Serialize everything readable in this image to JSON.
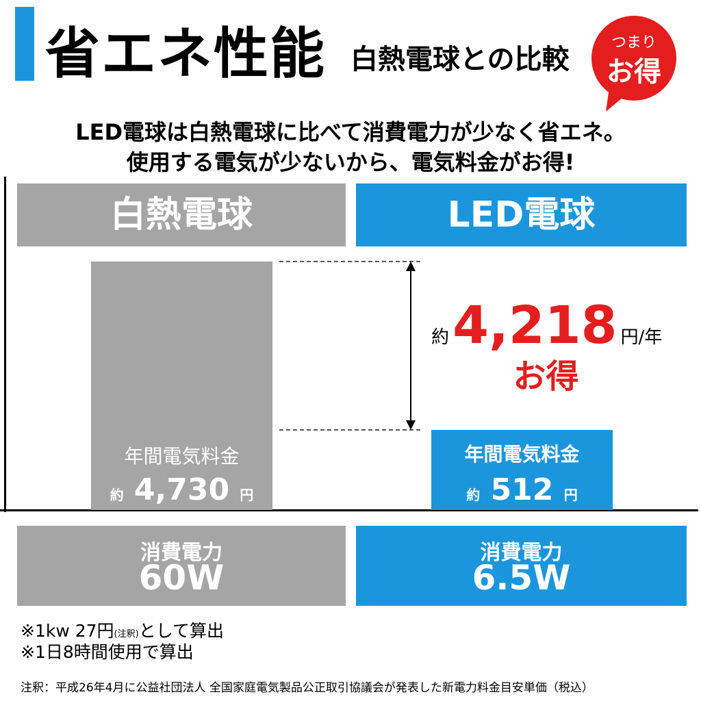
{
  "header": {
    "title": "省エネ性能",
    "subtitle": "白熱電球との比較",
    "badge": {
      "top": "つまり",
      "main": "お得"
    }
  },
  "intro": [
    "LED電球は白熱電球に比べて消費電力が少なく省エネ。",
    "使用する電気が少ないから、電気料金がお得!"
  ],
  "columns": [
    {
      "name": "白熱電球",
      "cost_label": "年間電気料金",
      "approx": "約",
      "cost": "4,730",
      "unit": "円",
      "power_label": "消費電力",
      "power": "60W"
    },
    {
      "name": "LED電球",
      "cost_label": "年間電気料金",
      "approx": "約",
      "cost": "512",
      "unit": "円",
      "power_label": "消費電力",
      "power": "6.5W"
    }
  ],
  "savings": {
    "approx": "約",
    "amount": "4,218",
    "unit": "円/年",
    "label": "お得"
  },
  "notes": {
    "line1": {
      "before": "※1kw 27円",
      "mark": "(注釈)",
      "after": "として算出"
    },
    "line2": "※1日8時間使用で算出"
  },
  "footnote": "注釈：平成26年4月に公益社団法人 全国家庭電気製品公正取引協議会が発表した新電力料金目安単価（税込）"
}
